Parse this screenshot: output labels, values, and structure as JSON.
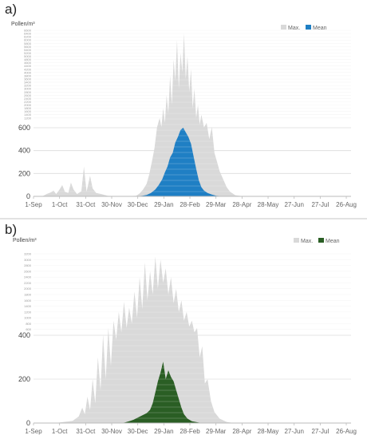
{
  "chart_data": [
    {
      "type": "area",
      "panel_label": "a)",
      "ylabel": "Pollen/m³",
      "legend": [
        "Max.",
        "Mean"
      ],
      "colors": {
        "max": "#d9d9d9",
        "mean": "#1f7fc4"
      },
      "x_ticks": [
        "1-Sep",
        "1-Oct",
        "31-Oct",
        "30-Nov",
        "30-Dec",
        "29-Jan",
        "28-Feb",
        "29-Mar",
        "28-Apr",
        "28-May",
        "27-Jun",
        "27-Jul",
        "26-Aug"
      ],
      "y_ticks_major": [
        0,
        200,
        400,
        600
      ],
      "y_ticks_minor": [
        1200,
        1400,
        1600,
        1800,
        2000,
        2200,
        2400,
        2600,
        2800,
        3000,
        3200,
        3400,
        3600,
        3800,
        4000,
        4200,
        4400,
        4600,
        4800,
        5000,
        5200,
        5400,
        5600,
        5800,
        6000,
        6200,
        6400,
        6600
      ],
      "ylim": [
        0,
        6600
      ],
      "grid": true,
      "legend_position": "top-right",
      "max_series": [
        [
          0,
          0
        ],
        [
          10,
          0
        ],
        [
          15,
          20
        ],
        [
          20,
          35
        ],
        [
          23,
          50
        ],
        [
          26,
          20
        ],
        [
          30,
          60
        ],
        [
          33,
          100
        ],
        [
          36,
          40
        ],
        [
          40,
          30
        ],
        [
          43,
          120
        ],
        [
          46,
          60
        ],
        [
          50,
          20
        ],
        [
          55,
          45
        ],
        [
          58,
          260
        ],
        [
          61,
          40
        ],
        [
          65,
          180
        ],
        [
          68,
          70
        ],
        [
          72,
          30
        ],
        [
          78,
          20
        ],
        [
          85,
          5
        ],
        [
          95,
          0
        ],
        [
          110,
          2
        ],
        [
          118,
          5
        ],
        [
          122,
          25
        ],
        [
          126,
          60
        ],
        [
          130,
          110
        ],
        [
          133,
          190
        ],
        [
          136,
          300
        ],
        [
          139,
          420
        ],
        [
          142,
          620
        ],
        [
          145,
          1200
        ],
        [
          147,
          650
        ],
        [
          149,
          1800
        ],
        [
          151,
          900
        ],
        [
          153,
          2600
        ],
        [
          155,
          1500
        ],
        [
          157,
          3800
        ],
        [
          159,
          2000
        ],
        [
          161,
          4800
        ],
        [
          163,
          3500
        ],
        [
          165,
          6000
        ],
        [
          167,
          3000
        ],
        [
          169,
          5200
        ],
        [
          171,
          4000
        ],
        [
          173,
          6400
        ],
        [
          175,
          3600
        ],
        [
          177,
          5000
        ],
        [
          179,
          2800
        ],
        [
          181,
          4200
        ],
        [
          183,
          1800
        ],
        [
          185,
          3000
        ],
        [
          187,
          1200
        ],
        [
          189,
          2000
        ],
        [
          191,
          800
        ],
        [
          193,
          1400
        ],
        [
          196,
          620
        ],
        [
          199,
          900
        ],
        [
          202,
          500
        ],
        [
          205,
          650
        ],
        [
          208,
          380
        ],
        [
          211,
          300
        ],
        [
          214,
          220
        ],
        [
          218,
          150
        ],
        [
          222,
          80
        ],
        [
          226,
          40
        ],
        [
          232,
          10
        ],
        [
          240,
          2
        ],
        [
          365,
          0
        ]
      ],
      "mean_series": [
        [
          0,
          0
        ],
        [
          118,
          0
        ],
        [
          125,
          5
        ],
        [
          130,
          12
        ],
        [
          135,
          30
        ],
        [
          140,
          60
        ],
        [
          144,
          100
        ],
        [
          148,
          150
        ],
        [
          151,
          210
        ],
        [
          154,
          260
        ],
        [
          157,
          340
        ],
        [
          160,
          380
        ],
        [
          163,
          470
        ],
        [
          166,
          520
        ],
        [
          169,
          580
        ],
        [
          172,
          600
        ],
        [
          175,
          560
        ],
        [
          178,
          520
        ],
        [
          181,
          460
        ],
        [
          184,
          350
        ],
        [
          187,
          240
        ],
        [
          190,
          140
        ],
        [
          193,
          80
        ],
        [
          196,
          50
        ],
        [
          200,
          30
        ],
        [
          205,
          15
        ],
        [
          210,
          5
        ],
        [
          220,
          0
        ],
        [
          365,
          0
        ]
      ]
    },
    {
      "type": "area",
      "panel_label": "b)",
      "ylabel": "Pollen/m³",
      "legend": [
        "Max.",
        "Mean"
      ],
      "colors": {
        "max": "#d9d9d9",
        "mean": "#2a5e24"
      },
      "x_ticks": [
        "1-Sep",
        "1-Oct",
        "31-Oct",
        "30-Nov",
        "30-Dec",
        "29-Jan",
        "28-Feb",
        "29-Mar",
        "28-Apr",
        "28-May",
        "27-Jun",
        "27-Jul",
        "26-Aug"
      ],
      "y_ticks_major": [
        0,
        200,
        400
      ],
      "y_ticks_minor": [
        600,
        800,
        1000,
        1200,
        1400,
        1600,
        1800,
        2000,
        2200,
        2400,
        2600,
        2800,
        3000,
        3200
      ],
      "ylim": [
        0,
        3200
      ],
      "grid": true,
      "legend_position": "top-right",
      "max_series": [
        [
          0,
          0
        ],
        [
          25,
          0
        ],
        [
          35,
          5
        ],
        [
          45,
          10
        ],
        [
          52,
          30
        ],
        [
          56,
          70
        ],
        [
          59,
          40
        ],
        [
          62,
          120
        ],
        [
          65,
          60
        ],
        [
          68,
          200
        ],
        [
          71,
          90
        ],
        [
          74,
          300
        ],
        [
          77,
          150
        ],
        [
          80,
          420
        ],
        [
          83,
          200
        ],
        [
          86,
          650
        ],
        [
          89,
          260
        ],
        [
          92,
          900
        ],
        [
          95,
          380
        ],
        [
          98,
          1200
        ],
        [
          101,
          500
        ],
        [
          104,
          1550
        ],
        [
          107,
          650
        ],
        [
          110,
          1350
        ],
        [
          113,
          800
        ],
        [
          116,
          1900
        ],
        [
          119,
          1000
        ],
        [
          122,
          2400
        ],
        [
          125,
          1300
        ],
        [
          128,
          2900
        ],
        [
          131,
          1600
        ],
        [
          134,
          2600
        ],
        [
          137,
          1800
        ],
        [
          140,
          3100
        ],
        [
          143,
          2000
        ],
        [
          146,
          3000
        ],
        [
          149,
          2200
        ],
        [
          152,
          2700
        ],
        [
          155,
          1800
        ],
        [
          158,
          2400
        ],
        [
          161,
          1500
        ],
        [
          164,
          2000
        ],
        [
          167,
          1200
        ],
        [
          170,
          1600
        ],
        [
          173,
          900
        ],
        [
          176,
          1200
        ],
        [
          179,
          700
        ],
        [
          182,
          900
        ],
        [
          185,
          500
        ],
        [
          188,
          650
        ],
        [
          191,
          300
        ],
        [
          194,
          350
        ],
        [
          197,
          180
        ],
        [
          200,
          200
        ],
        [
          204,
          100
        ],
        [
          208,
          50
        ],
        [
          214,
          20
        ],
        [
          222,
          5
        ],
        [
          230,
          0
        ],
        [
          365,
          0
        ]
      ],
      "mean_series": [
        [
          0,
          0
        ],
        [
          100,
          0
        ],
        [
          105,
          3
        ],
        [
          110,
          8
        ],
        [
          115,
          15
        ],
        [
          120,
          25
        ],
        [
          125,
          35
        ],
        [
          130,
          45
        ],
        [
          134,
          60
        ],
        [
          137,
          90
        ],
        [
          140,
          140
        ],
        [
          143,
          190
        ],
        [
          146,
          230
        ],
        [
          149,
          280
        ],
        [
          152,
          200
        ],
        [
          155,
          240
        ],
        [
          158,
          210
        ],
        [
          161,
          190
        ],
        [
          164,
          150
        ],
        [
          167,
          110
        ],
        [
          170,
          70
        ],
        [
          173,
          40
        ],
        [
          177,
          20
        ],
        [
          182,
          8
        ],
        [
          190,
          2
        ],
        [
          195,
          0
        ],
        [
          365,
          0
        ]
      ]
    }
  ]
}
